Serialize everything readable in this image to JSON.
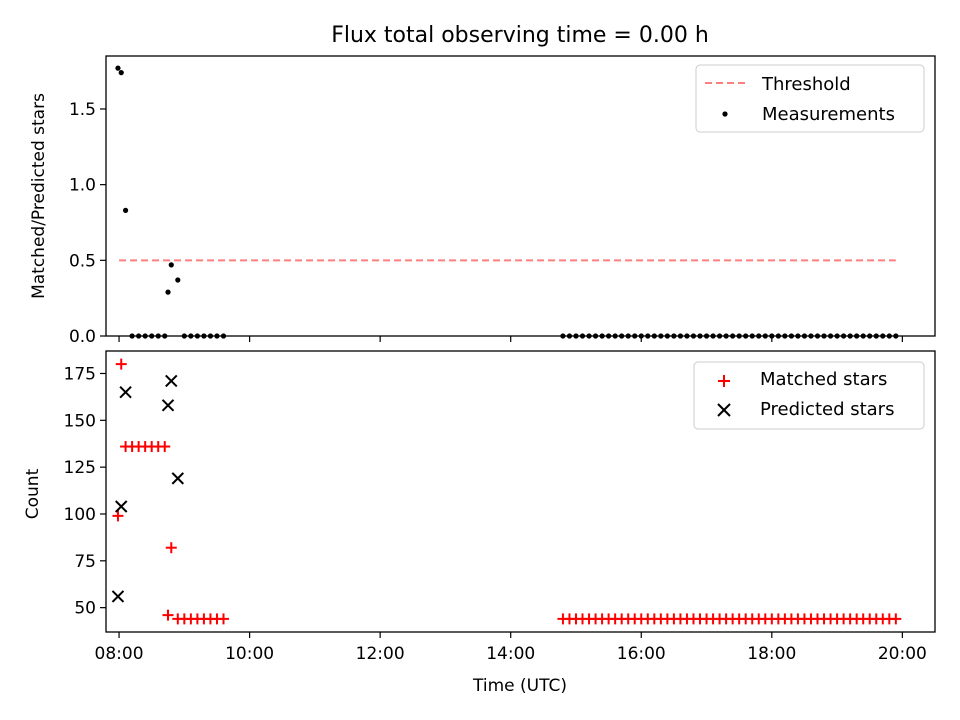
{
  "chart_data": {
    "type": "scatter",
    "title": "Flux total observing time = 0.00 h",
    "xlabel": "Time (UTC)",
    "x_ticks": [
      "08:00",
      "10:00",
      "12:00",
      "14:00",
      "16:00",
      "18:00",
      "20:00"
    ],
    "xlim": [
      "07:48",
      "20:30"
    ],
    "colors": {
      "threshold": "#ff7f7f",
      "measurements": "#000000",
      "matched": "#ff0000",
      "predicted": "#000000"
    },
    "panels": [
      {
        "ylabel": "Matched/Predicted stars",
        "ylim": [
          0,
          1.85
        ],
        "y_ticks": [
          "0.0",
          "0.5",
          "1.0",
          "1.5"
        ],
        "y_tick_values": [
          0,
          0.5,
          1.0,
          1.5
        ],
        "legend_position": "top-right",
        "threshold": {
          "name": "Threshold",
          "value": 0.5,
          "x_range": [
            "08:00",
            "19:54"
          ]
        },
        "measurements": {
          "name": "Measurements",
          "points": [
            [
              "07:59",
              1.77
            ],
            [
              "08:02",
              1.74
            ],
            [
              "08:06",
              0.83
            ],
            [
              "08:45",
              0.29
            ],
            [
              "08:48",
              0.47
            ],
            [
              "08:54",
              0.37
            ],
            [
              "08:12",
              0
            ],
            [
              "08:18",
              0
            ],
            [
              "08:24",
              0
            ],
            [
              "08:30",
              0
            ],
            [
              "08:36",
              0
            ],
            [
              "08:42",
              0
            ],
            [
              "09:00",
              0
            ],
            [
              "09:06",
              0
            ],
            [
              "09:12",
              0
            ],
            [
              "09:18",
              0
            ],
            [
              "09:24",
              0
            ],
            [
              "09:30",
              0
            ],
            [
              "09:36",
              0
            ]
          ],
          "zero_run": {
            "start": "14:48",
            "end": "19:54",
            "step_min": 6,
            "value": 0
          }
        }
      },
      {
        "ylabel": "Count",
        "ylim": [
          37,
          187
        ],
        "y_ticks": [
          "50",
          "75",
          "100",
          "125",
          "150",
          "175"
        ],
        "y_tick_values": [
          50,
          75,
          100,
          125,
          150,
          175
        ],
        "legend_position": "top-right",
        "matched": {
          "name": "Matched stars",
          "points": [
            [
              "07:59",
              99
            ],
            [
              "08:02",
              180
            ],
            [
              "08:06",
              136
            ],
            [
              "08:12",
              136
            ],
            [
              "08:18",
              136
            ],
            [
              "08:24",
              136
            ],
            [
              "08:30",
              136
            ],
            [
              "08:36",
              136
            ],
            [
              "08:42",
              136
            ],
            [
              "08:45",
              46
            ],
            [
              "08:48",
              82
            ],
            [
              "08:54",
              44
            ],
            [
              "09:00",
              44
            ],
            [
              "09:06",
              44
            ],
            [
              "09:12",
              44
            ],
            [
              "09:18",
              44
            ],
            [
              "09:24",
              44
            ],
            [
              "09:30",
              44
            ],
            [
              "09:36",
              44
            ]
          ],
          "run": {
            "start": "14:48",
            "end": "19:54",
            "step_min": 6,
            "value": 44
          }
        },
        "predicted": {
          "name": "Predicted stars",
          "points": [
            [
              "07:59",
              56
            ],
            [
              "08:02",
              104
            ],
            [
              "08:06",
              165
            ],
            [
              "08:45",
              158
            ],
            [
              "08:48",
              171
            ],
            [
              "08:54",
              119
            ]
          ]
        }
      }
    ]
  }
}
